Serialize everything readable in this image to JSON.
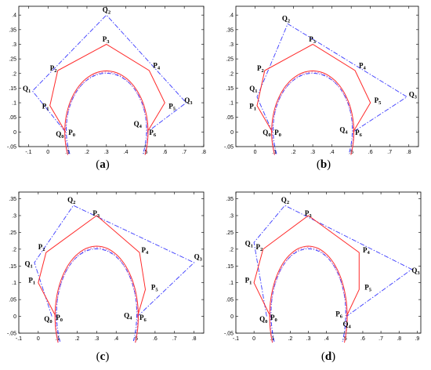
{
  "colors": {
    "polygon_P": "#ff2a2a",
    "polygon_Q": "#3a3aff",
    "arc_red": "#ff3030",
    "arc_blue": "#3a3aff",
    "arc_magenta": "#c060c0",
    "axes": "#000000"
  },
  "panels": [
    {
      "id": "a",
      "caption": "a",
      "xlim": [
        -0.15,
        0.8
      ],
      "ylim": [
        -0.05,
        0.43
      ],
      "xticks": [
        -0.1,
        0,
        0.1,
        0.2,
        0.3,
        0.4,
        0.5,
        0.6,
        0.7,
        0.8
      ],
      "yticks": [
        -0.05,
        0,
        0.05,
        0.1,
        0.15,
        0.2,
        0.25,
        0.3,
        0.35,
        0.4
      ],
      "P": [
        [
          0.09,
          0.0
        ],
        [
          0.01,
          0.09
        ],
        [
          0.05,
          0.21
        ],
        [
          0.3,
          0.3
        ],
        [
          0.52,
          0.21
        ],
        [
          0.6,
          0.1
        ],
        [
          0.51,
          0.0
        ]
      ],
      "Q": [
        [
          0.09,
          0.0
        ],
        [
          -0.08,
          0.14
        ],
        [
          0.3,
          0.4
        ],
        [
          0.71,
          0.1
        ],
        [
          0.51,
          0.0
        ]
      ],
      "P_labels": [
        {
          "name": "P",
          "sub": "0",
          "at": [
            0.105,
            -0.01
          ]
        },
        {
          "name": "P",
          "sub": "1",
          "at": [
            -0.03,
            0.08
          ]
        },
        {
          "name": "P",
          "sub": "2",
          "at": [
            0.01,
            0.21
          ]
        },
        {
          "name": "P",
          "sub": "3",
          "at": [
            0.28,
            0.31
          ]
        },
        {
          "name": "P",
          "sub": "4",
          "at": [
            0.54,
            0.22
          ]
        },
        {
          "name": "P",
          "sub": "5",
          "at": [
            0.62,
            0.08
          ]
        },
        {
          "name": "P",
          "sub": "6",
          "at": [
            0.52,
            -0.01
          ]
        }
      ],
      "Q_labels": [
        {
          "name": "Q",
          "sub": "0",
          "at": [
            0.04,
            -0.015
          ]
        },
        {
          "name": "Q",
          "sub": "1",
          "at": [
            -0.13,
            0.14
          ]
        },
        {
          "name": "Q",
          "sub": "2",
          "at": [
            0.28,
            0.41
          ]
        },
        {
          "name": "Q",
          "sub": "3",
          "at": [
            0.7,
            0.1
          ]
        },
        {
          "name": "Q",
          "sub": "4",
          "at": [
            0.44,
            0.02
          ]
        }
      ]
    },
    {
      "id": "b",
      "caption": "b",
      "xlim": [
        -0.1,
        0.85
      ],
      "ylim": [
        -0.05,
        0.43
      ],
      "xticks": [
        0,
        0.1,
        0.2,
        0.3,
        0.4,
        0.5,
        0.6,
        0.7,
        0.8
      ],
      "yticks": [
        -0.05,
        0,
        0.05,
        0.1,
        0.15,
        0.2,
        0.25,
        0.3,
        0.35,
        0.4
      ],
      "P": [
        [
          0.09,
          0.0
        ],
        [
          0.01,
          0.09
        ],
        [
          0.05,
          0.21
        ],
        [
          0.3,
          0.3
        ],
        [
          0.52,
          0.21
        ],
        [
          0.6,
          0.1
        ],
        [
          0.51,
          0.0
        ]
      ],
      "Q": [
        [
          0.09,
          0.0
        ],
        [
          0.01,
          0.12
        ],
        [
          0.17,
          0.37
        ],
        [
          0.79,
          0.12
        ],
        [
          0.51,
          0.0
        ]
      ],
      "P_labels": [
        {
          "name": "P",
          "sub": "0",
          "at": [
            0.1,
            -0.01
          ]
        },
        {
          "name": "P",
          "sub": "1",
          "at": [
            -0.03,
            0.08
          ]
        },
        {
          "name": "P",
          "sub": "2",
          "at": [
            0.01,
            0.21
          ]
        },
        {
          "name": "P",
          "sub": "3",
          "at": [
            0.28,
            0.31
          ]
        },
        {
          "name": "P",
          "sub": "4",
          "at": [
            0.54,
            0.22
          ]
        },
        {
          "name": "P",
          "sub": "5",
          "at": [
            0.62,
            0.1
          ]
        },
        {
          "name": "P",
          "sub": "6",
          "at": [
            0.52,
            -0.01
          ]
        }
      ],
      "Q_labels": [
        {
          "name": "Q",
          "sub": "0",
          "at": [
            0.04,
            -0.01
          ]
        },
        {
          "name": "Q",
          "sub": "1",
          "at": [
            -0.03,
            0.14
          ]
        },
        {
          "name": "Q",
          "sub": "2",
          "at": [
            0.14,
            0.38
          ]
        },
        {
          "name": "Q",
          "sub": "3",
          "at": [
            0.8,
            0.12
          ]
        },
        {
          "name": "Q",
          "sub": "4",
          "at": [
            0.44,
            0.0
          ]
        }
      ]
    },
    {
      "id": "c",
      "caption": "c",
      "xlim": [
        -0.1,
        0.85
      ],
      "ylim": [
        -0.05,
        0.37
      ],
      "xticks": [
        -0.1,
        0,
        0.1,
        0.2,
        0.3,
        0.4,
        0.5,
        0.6,
        0.7,
        0.8
      ],
      "yticks": [
        -0.05,
        0,
        0.05,
        0.1,
        0.15,
        0.2,
        0.25,
        0.3,
        0.35
      ],
      "P": [
        [
          0.09,
          0.0
        ],
        [
          0.0,
          0.1
        ],
        [
          0.04,
          0.19
        ],
        [
          0.3,
          0.3
        ],
        [
          0.52,
          0.19
        ],
        [
          0.55,
          0.08
        ],
        [
          0.51,
          0.0
        ]
      ],
      "Q": [
        [
          0.07,
          0.0
        ],
        [
          -0.02,
          0.16
        ],
        [
          0.18,
          0.33
        ],
        [
          0.8,
          0.16
        ],
        [
          0.51,
          0.0
        ]
      ],
      "P_labels": [
        {
          "name": "P",
          "sub": "0",
          "at": [
            0.09,
            -0.01
          ]
        },
        {
          "name": "P",
          "sub": "1",
          "at": [
            -0.05,
            0.1
          ]
        },
        {
          "name": "P",
          "sub": "2",
          "at": [
            0.0,
            0.2
          ]
        },
        {
          "name": "P",
          "sub": "3",
          "at": [
            0.28,
            0.3
          ]
        },
        {
          "name": "P",
          "sub": "4",
          "at": [
            0.53,
            0.19
          ]
        },
        {
          "name": "P",
          "sub": "5",
          "at": [
            0.58,
            0.08
          ]
        },
        {
          "name": "P",
          "sub": "6",
          "at": [
            0.52,
            -0.01
          ]
        }
      ],
      "Q_labels": [
        {
          "name": "Q",
          "sub": "0",
          "at": [
            0.03,
            -0.015
          ]
        },
        {
          "name": "Q",
          "sub": "1",
          "at": [
            -0.07,
            0.15
          ]
        },
        {
          "name": "Q",
          "sub": "2",
          "at": [
            0.15,
            0.34
          ]
        },
        {
          "name": "Q",
          "sub": "3",
          "at": [
            0.8,
            0.17
          ]
        },
        {
          "name": "Q",
          "sub": "4",
          "at": [
            0.44,
            -0.005
          ]
        }
      ]
    },
    {
      "id": "d",
      "caption": "d",
      "xlim": [
        -0.1,
        0.92
      ],
      "ylim": [
        -0.05,
        0.37
      ],
      "xticks": [
        -0.1,
        0,
        0.1,
        0.2,
        0.3,
        0.4,
        0.5,
        0.6,
        0.7,
        0.8,
        0.9
      ],
      "yticks": [
        -0.05,
        0,
        0.05,
        0.1,
        0.15,
        0.2,
        0.25,
        0.3,
        0.35
      ],
      "P": [
        [
          0.09,
          0.0
        ],
        [
          0.0,
          0.1
        ],
        [
          0.05,
          0.2
        ],
        [
          0.3,
          0.3
        ],
        [
          0.58,
          0.19
        ],
        [
          0.58,
          0.08
        ],
        [
          0.51,
          0.0
        ]
      ],
      "Q": [
        [
          0.07,
          0.0
        ],
        [
          0.0,
          0.22
        ],
        [
          0.17,
          0.33
        ],
        [
          0.87,
          0.14
        ],
        [
          0.51,
          0.0
        ]
      ],
      "P_labels": [
        {
          "name": "P",
          "sub": "0",
          "at": [
            0.09,
            -0.01
          ]
        },
        {
          "name": "P",
          "sub": "1",
          "at": [
            -0.05,
            0.1
          ]
        },
        {
          "name": "P",
          "sub": "2",
          "at": [
            0.01,
            0.2
          ]
        },
        {
          "name": "P",
          "sub": "3",
          "at": [
            0.28,
            0.3
          ]
        },
        {
          "name": "P",
          "sub": "4",
          "at": [
            0.6,
            0.19
          ]
        },
        {
          "name": "P",
          "sub": "5",
          "at": [
            0.61,
            0.08
          ]
        },
        {
          "name": "P",
          "sub": "6",
          "at": [
            0.45,
            0.0
          ]
        }
      ],
      "Q_labels": [
        {
          "name": "Q",
          "sub": "0",
          "at": [
            0.03,
            -0.015
          ]
        },
        {
          "name": "Q",
          "sub": "1",
          "at": [
            -0.05,
            0.21
          ]
        },
        {
          "name": "Q",
          "sub": "2",
          "at": [
            0.15,
            0.34
          ]
        },
        {
          "name": "Q",
          "sub": "3",
          "at": [
            0.87,
            0.13
          ]
        },
        {
          "name": "Q",
          "sub": "4",
          "at": [
            0.49,
            -0.03
          ]
        }
      ]
    }
  ],
  "arc": {
    "center": [
      0.3,
      0.0
    ],
    "rx": 0.21,
    "ry": 0.205,
    "start_deg": 202,
    "end_deg": -22
  }
}
